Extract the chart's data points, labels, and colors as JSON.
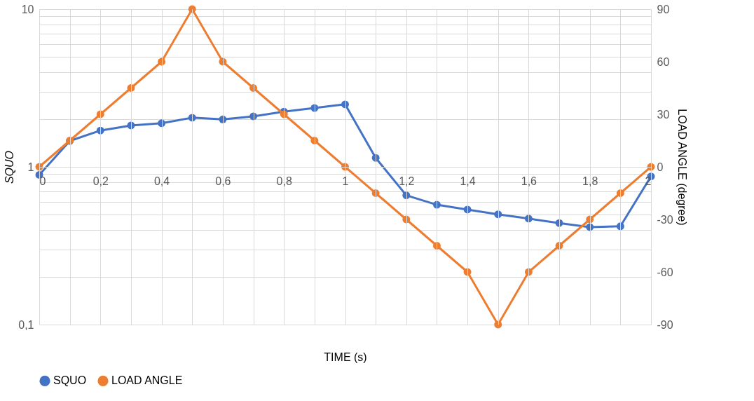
{
  "chart_data": {
    "type": "line",
    "xlabel": "TIME (s)",
    "ylabel": "SQUO",
    "y2label": "LOAD ANGLE (degree)",
    "x": [
      0,
      0.1,
      0.2,
      0.3,
      0.4,
      0.5,
      0.6,
      0.7,
      0.8,
      0.9,
      1,
      1.1,
      1.2,
      1.3,
      1.4,
      1.5,
      1.6,
      1.7,
      1.8,
      1.9,
      2
    ],
    "series": [
      {
        "name": "SQUO",
        "color": "#4472c4",
        "values": [
          0.89,
          1.46,
          1.7,
          1.83,
          1.89,
          2.05,
          2.0,
          2.09,
          2.24,
          2.36,
          2.49,
          1.14,
          0.66,
          0.575,
          0.536,
          0.5,
          0.47,
          0.44,
          0.415,
          0.42,
          0.87
        ]
      },
      {
        "name": "LOAD ANGLE",
        "color": "#ed7d31",
        "axis": "y2",
        "values": [
          0,
          15,
          30,
          45,
          60,
          90,
          60,
          45,
          30,
          15,
          0,
          -15,
          -30,
          -45,
          -60,
          -90,
          -60,
          -45,
          -30,
          -15,
          0
        ]
      }
    ],
    "xlim": [
      0,
      2
    ],
    "xticks": [
      {
        "value": 0,
        "label": "0"
      },
      {
        "value": 0.1,
        "label": null
      },
      {
        "value": 0.2,
        "label": "0,2"
      },
      {
        "value": 0.3,
        "label": null
      },
      {
        "value": 0.4,
        "label": "0,4"
      },
      {
        "value": 0.5,
        "label": null
      },
      {
        "value": 0.6,
        "label": "0,6"
      },
      {
        "value": 0.7,
        "label": null
      },
      {
        "value": 0.8,
        "label": "0,8"
      },
      {
        "value": 0.9,
        "label": null
      },
      {
        "value": 1,
        "label": "1"
      },
      {
        "value": 1.1,
        "label": null
      },
      {
        "value": 1.2,
        "label": "1,2"
      },
      {
        "value": 1.3,
        "label": null
      },
      {
        "value": 1.4,
        "label": "1,4"
      },
      {
        "value": 1.5,
        "label": null
      },
      {
        "value": 1.6,
        "label": "1,6"
      },
      {
        "value": 1.7,
        "label": null
      },
      {
        "value": 1.8,
        "label": "1,8"
      },
      {
        "value": 1.9,
        "label": null
      },
      {
        "value": 2,
        "label": "2"
      }
    ],
    "ylim": [
      0.1,
      10
    ],
    "yticks": [
      {
        "value": 0.1,
        "label": "0,1"
      },
      {
        "value": 0.2,
        "label": null
      },
      {
        "value": 0.3,
        "label": null
      },
      {
        "value": 0.4,
        "label": null
      },
      {
        "value": 0.5,
        "label": null
      },
      {
        "value": 0.6,
        "label": null
      },
      {
        "value": 0.7,
        "label": null
      },
      {
        "value": 0.8,
        "label": null
      },
      {
        "value": 0.9,
        "label": null
      },
      {
        "value": 1,
        "label": "1"
      },
      {
        "value": 2,
        "label": null
      },
      {
        "value": 3,
        "label": null
      },
      {
        "value": 4,
        "label": null
      },
      {
        "value": 5,
        "label": null
      },
      {
        "value": 6,
        "label": null
      },
      {
        "value": 7,
        "label": null
      },
      {
        "value": 8,
        "label": null
      },
      {
        "value": 9,
        "label": null
      },
      {
        "value": 10,
        "label": "10"
      }
    ],
    "y2lim": [
      -90,
      90
    ],
    "y2ticks": [
      -90,
      -60,
      -30,
      0,
      30,
      60,
      90
    ],
    "log": "y",
    "grid": true,
    "legend": "bottom",
    "marker": "circle",
    "line_style": "solid"
  }
}
